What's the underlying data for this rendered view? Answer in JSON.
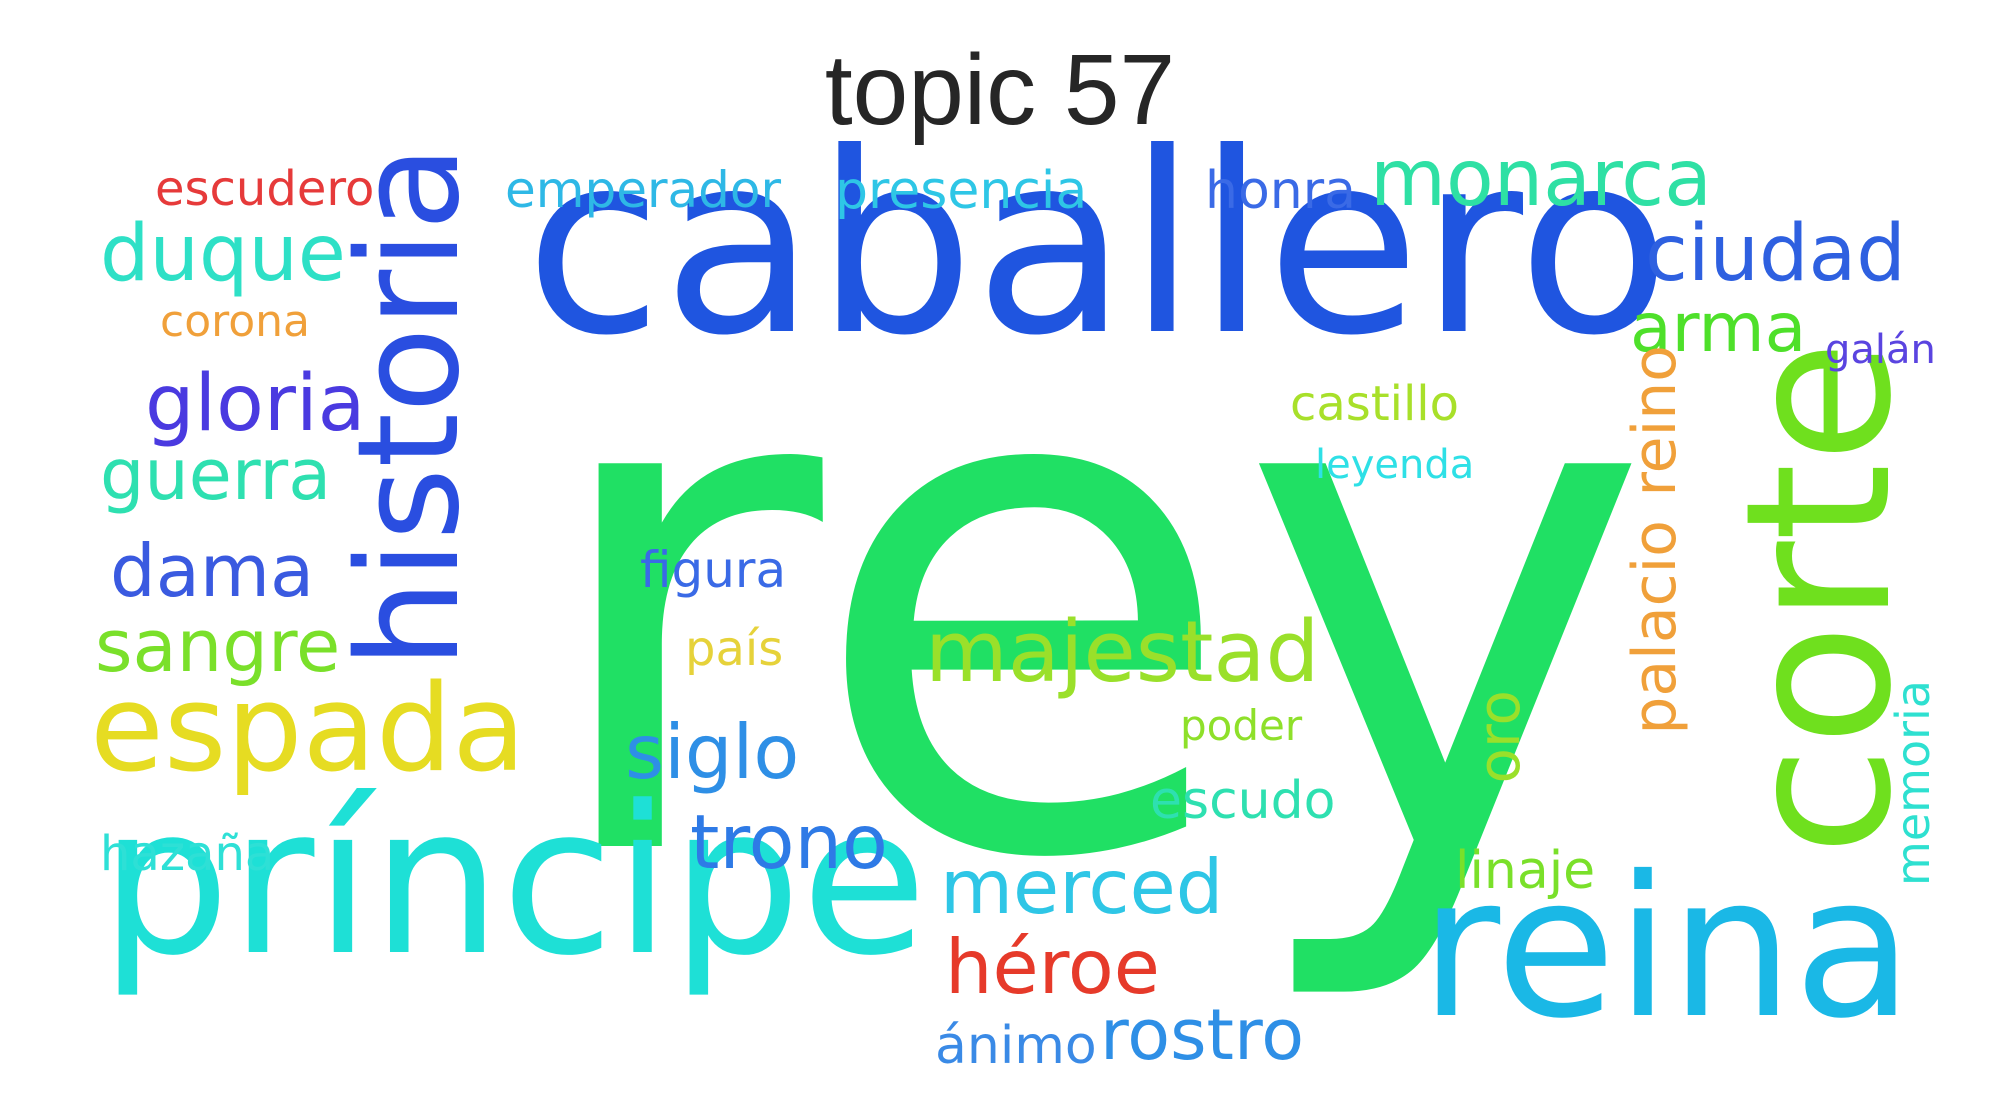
{
  "title": "topic 57",
  "words": [
    {
      "text": "rey",
      "color": "#20e064",
      "vertical": false
    },
    {
      "text": "caballero",
      "color": "#1f55e0",
      "vertical": false
    },
    {
      "text": "príncipe",
      "color": "#1ee0d6",
      "vertical": false
    },
    {
      "text": "reina",
      "color": "#1ab8e6",
      "vertical": false
    },
    {
      "text": "corte",
      "color": "#6fe01e",
      "vertical": true
    },
    {
      "text": "historia",
      "color": "#2a4ee0",
      "vertical": true
    },
    {
      "text": "espada",
      "color": "#e6dc22",
      "vertical": false
    },
    {
      "text": "majestad",
      "color": "#9ae02a",
      "vertical": false
    },
    {
      "text": "siglo",
      "color": "#2e8fe6",
      "vertical": false
    },
    {
      "text": "trono",
      "color": "#2e7ae6",
      "vertical": false
    },
    {
      "text": "merced",
      "color": "#2ec6e6",
      "vertical": false
    },
    {
      "text": "héroe",
      "color": "#e63a2a",
      "vertical": false
    },
    {
      "text": "rostro",
      "color": "#2e8fe6",
      "vertical": false
    },
    {
      "text": "ánimo",
      "color": "#3a8ae6",
      "vertical": false
    },
    {
      "text": "monarca",
      "color": "#2ee0a4",
      "vertical": false
    },
    {
      "text": "ciudad",
      "color": "#2e60e0",
      "vertical": false
    },
    {
      "text": "arma",
      "color": "#4ee02a",
      "vertical": false
    },
    {
      "text": "galán",
      "color": "#5a44e0",
      "vertical": false
    },
    {
      "text": "reino",
      "color": "#f0a03a",
      "vertical": true
    },
    {
      "text": "palacio",
      "color": "#f0a03a",
      "vertical": true
    },
    {
      "text": "memoria",
      "color": "#2ee0d0",
      "vertical": true
    },
    {
      "text": "oro",
      "color": "#9ae02a",
      "vertical": true
    },
    {
      "text": "linaje",
      "color": "#7ae02a",
      "vertical": false
    },
    {
      "text": "escudo",
      "color": "#2ee0b0",
      "vertical": false
    },
    {
      "text": "poder",
      "color": "#8ee02a",
      "vertical": false
    },
    {
      "text": "castillo",
      "color": "#a8e02a",
      "vertical": false
    },
    {
      "text": "leyenda",
      "color": "#2ee0e6",
      "vertical": false
    },
    {
      "text": "honra",
      "color": "#3a6ae6",
      "vertical": false
    },
    {
      "text": "presencia",
      "color": "#2ec6e6",
      "vertical": false
    },
    {
      "text": "emperador",
      "color": "#2eb8e6",
      "vertical": false
    },
    {
      "text": "escudero",
      "color": "#e63a3a",
      "vertical": false
    },
    {
      "text": "duque",
      "color": "#2ee0c6",
      "vertical": false
    },
    {
      "text": "corona",
      "color": "#f0a03a",
      "vertical": false
    },
    {
      "text": "gloria",
      "color": "#4a3ae0",
      "vertical": false
    },
    {
      "text": "guerra",
      "color": "#2ee0b0",
      "vertical": false
    },
    {
      "text": "dama",
      "color": "#3a5ae0",
      "vertical": false
    },
    {
      "text": "sangre",
      "color": "#7ae02a",
      "vertical": false
    },
    {
      "text": "hazaña",
      "color": "#2ee0d6",
      "vertical": false
    },
    {
      "text": "figura",
      "color": "#3a6ae6",
      "vertical": false
    },
    {
      "text": "país",
      "color": "#e6d23a",
      "vertical": false
    }
  ]
}
